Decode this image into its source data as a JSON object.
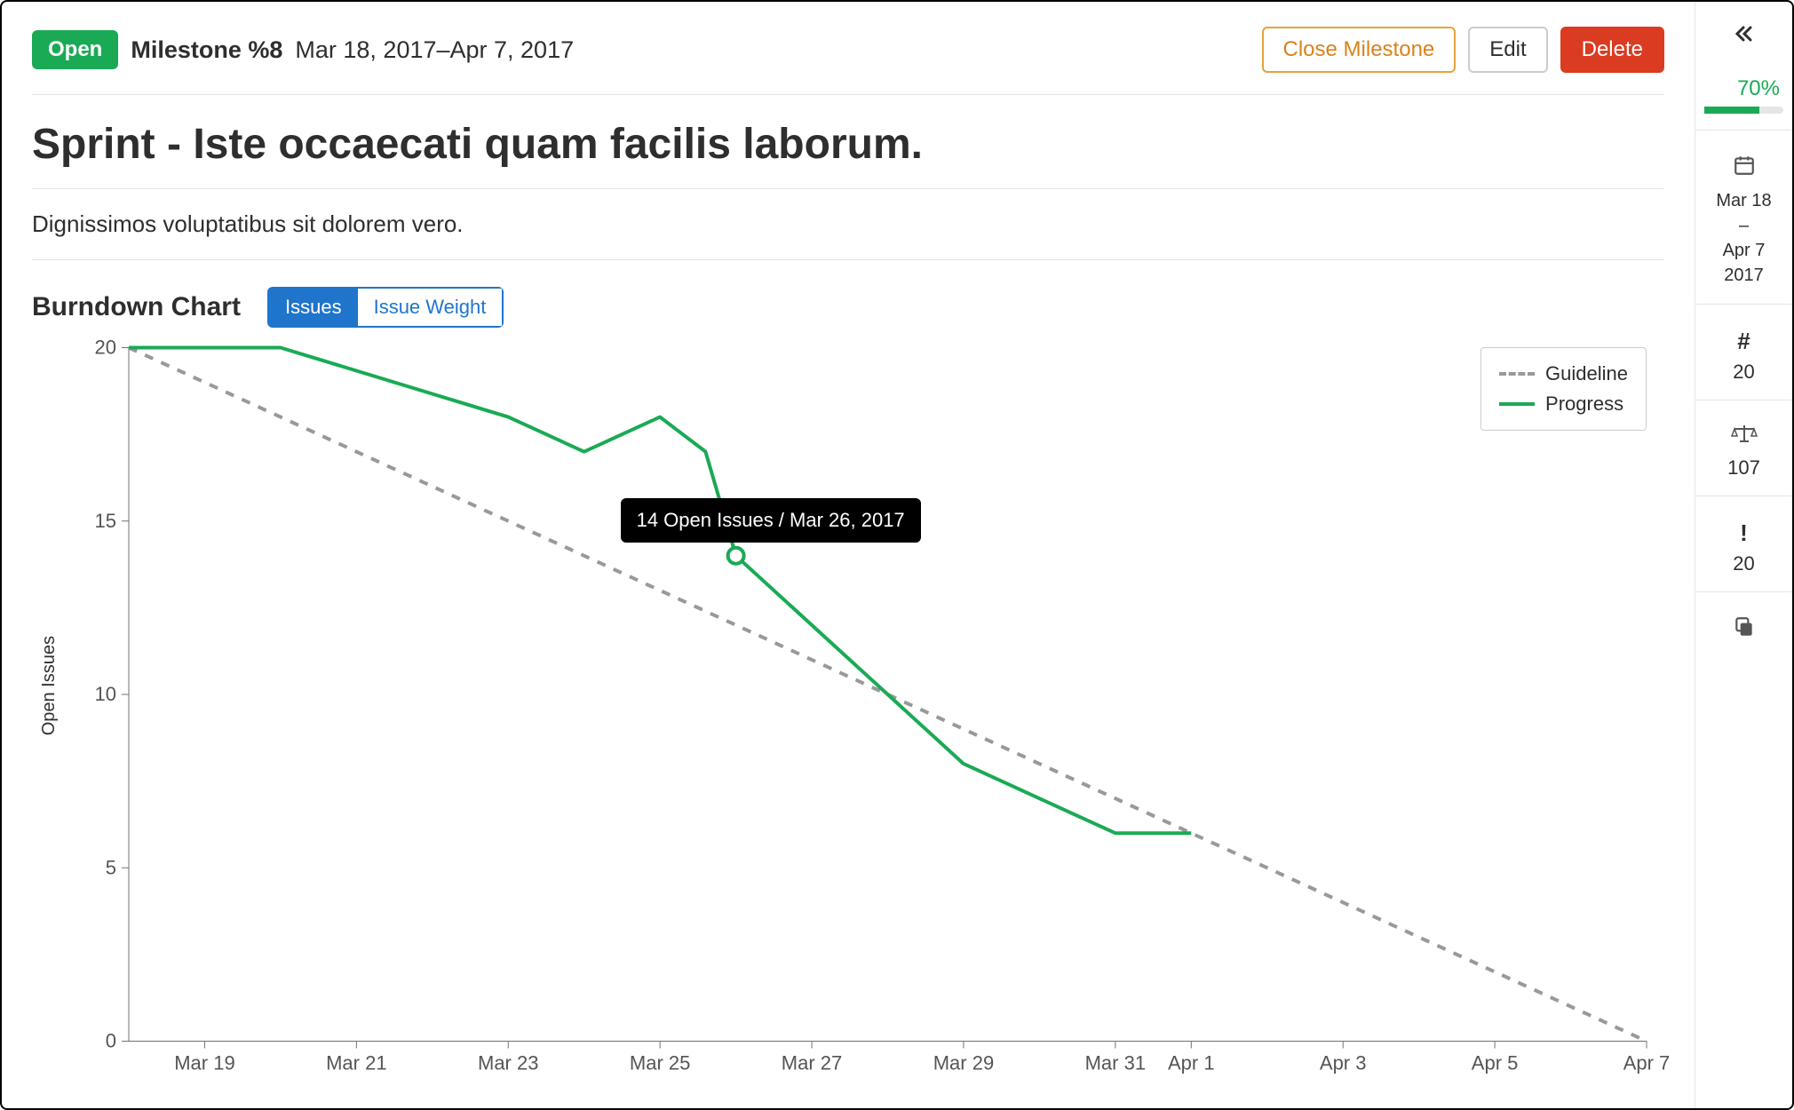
{
  "header": {
    "status_label": "Open",
    "milestone_label": "Milestone %8",
    "date_range": "Mar 18, 2017–Apr 7, 2017",
    "close_label": "Close Milestone",
    "edit_label": "Edit",
    "delete_label": "Delete"
  },
  "title": "Sprint - Iste occaecati quam facilis laborum.",
  "description": "Dignissimos voluptatibus sit dolorem vero.",
  "burndown": {
    "section_title": "Burndown Chart",
    "toggle_issues": "Issues",
    "toggle_weight": "Issue Weight",
    "y_axis_title": "Open Issues",
    "legend_guideline": "Guideline",
    "legend_progress": "Progress",
    "tooltip_text": "14 Open Issues / Mar 26, 2017",
    "colors": {
      "guideline": "#999999",
      "progress": "#1aaa55",
      "axis": "#707070",
      "tick_text": "#555555",
      "marker_fill": "#ffffff"
    },
    "type": "line",
    "x_domain_days": 20,
    "ylim": [
      0,
      20
    ],
    "ytick_step": 5,
    "y_ticks": [
      0,
      5,
      10,
      15,
      20
    ],
    "x_ticks": [
      {
        "day": 1,
        "label": "Mar 19"
      },
      {
        "day": 3,
        "label": "Mar 21"
      },
      {
        "day": 5,
        "label": "Mar 23"
      },
      {
        "day": 7,
        "label": "Mar 25"
      },
      {
        "day": 9,
        "label": "Mar 27"
      },
      {
        "day": 11,
        "label": "Mar 29"
      },
      {
        "day": 13,
        "label": "Mar 31"
      },
      {
        "day": 14,
        "label": "Apr 1"
      },
      {
        "day": 16,
        "label": "Apr 3"
      },
      {
        "day": 18,
        "label": "Apr 5"
      },
      {
        "day": 20,
        "label": "Apr 7"
      }
    ],
    "guideline_series": [
      {
        "day": 0,
        "value": 20
      },
      {
        "day": 20,
        "value": 0
      }
    ],
    "progress_series": [
      {
        "day": 0,
        "value": 20
      },
      {
        "day": 2,
        "value": 20
      },
      {
        "day": 5,
        "value": 18
      },
      {
        "day": 6,
        "value": 17
      },
      {
        "day": 7,
        "value": 18
      },
      {
        "day": 7.6,
        "value": 17
      },
      {
        "day": 8,
        "value": 14
      },
      {
        "day": 10,
        "value": 10
      },
      {
        "day": 11,
        "value": 8
      },
      {
        "day": 12,
        "value": 7
      },
      {
        "day": 13,
        "value": 6
      },
      {
        "day": 14,
        "value": 6
      }
    ],
    "highlighted_point": {
      "day": 8,
      "value": 14
    },
    "line_width": 4,
    "guideline_dash": "10,10",
    "marker_radius": 9
  },
  "sidebar": {
    "percent": "70%",
    "percent_value": 70,
    "date_start": "Mar 18",
    "date_sep": "–",
    "date_end": "Apr 7",
    "date_year": "2017",
    "issues_count": "20",
    "weight_total": "107",
    "mr_count": "20"
  }
}
